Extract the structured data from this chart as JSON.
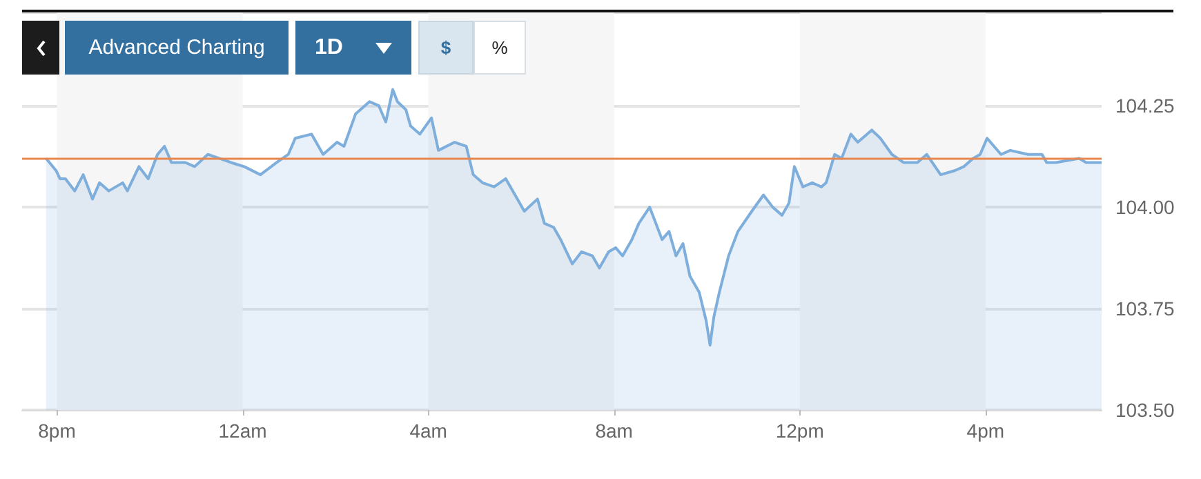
{
  "chart_data": {
    "type": "area",
    "annotations": [
      "Advanced Charting",
      "1D",
      "$",
      "%"
    ],
    "x": [
      "--01-01T19:46",
      "--01-01T19:59",
      "--01-01T20:04",
      "--01-01T20:11",
      "--01-01T20:23",
      "--01-01T20:34",
      "--01-01T20:46",
      "--01-01T20:55",
      "--01-01T21:07",
      "--01-01T21:25",
      "--01-01T21:31",
      "--01-01T21:46",
      "--01-01T21:58",
      "--01-01T22:10",
      "--01-01T22:19",
      "--01-01T22:28",
      "--01-01T22:46",
      "--01-01T22:58",
      "--01-01T23:15",
      "--01-01T23:45",
      "--01-02T00:02",
      "--01-02T00:23",
      "--01-02T00:44",
      "--01-02T00:59",
      "--01-02T01:08",
      "--01-02T01:29",
      "--01-02T01:44",
      "--01-02T02:02",
      "--01-02T02:11",
      "--01-02T02:26",
      "--01-02T02:44",
      "--01-02T02:56",
      "--01-02T03:05",
      "--01-02T03:14",
      "--01-02T03:20",
      "--01-02T03:31",
      "--01-02T03:37",
      "--01-02T03:49",
      "--01-02T04:04",
      "--01-02T04:13",
      "--01-02T04:34",
      "--01-02T04:49",
      "--01-02T04:58",
      "--01-02T05:10",
      "--01-02T05:25",
      "--01-02T05:40",
      "--01-02T05:49",
      "--01-02T06:04",
      "--01-02T06:21",
      "--01-02T06:30",
      "--01-02T06:42",
      "--01-02T06:51",
      "--01-02T07:06",
      "--01-02T07:18",
      "--01-02T07:32",
      "--01-02T07:41",
      "--01-02T07:53",
      "--01-02T08:02",
      "--01-02T08:11",
      "--01-02T08:23",
      "--01-02T08:32",
      "--01-02T08:46",
      "--01-02T09:02",
      "--01-02T09:11",
      "--01-02T09:20",
      "--01-02T09:29",
      "--01-02T09:38",
      "--01-02T09:50",
      "--01-02T09:59",
      "--01-02T10:04",
      "--01-02T10:09",
      "--01-02T10:16",
      "--01-02T10:28",
      "--01-02T10:40",
      "--01-02T10:58",
      "--01-02T11:13",
      "--01-02T11:25",
      "--01-02T11:37",
      "--01-02T11:46",
      "--01-02T11:53",
      "--01-02T12:04",
      "--01-02T12:16",
      "--01-02T12:28",
      "--01-02T12:34",
      "--01-02T12:45",
      "--01-02T12:54",
      "--01-02T13:06",
      "--01-02T13:15",
      "--01-02T13:33",
      "--01-02T13:44",
      "--01-02T13:59",
      "--01-02T14:14",
      "--01-02T14:32",
      "--01-02T14:44",
      "--01-02T15:02",
      "--01-02T15:20",
      "--01-02T15:32",
      "--01-02T15:44",
      "--01-02T15:53",
      "--01-02T16:02",
      "--01-02T16:20",
      "--01-02T16:32",
      "--01-02T16:55",
      "--01-02T17:13",
      "--01-02T17:19",
      "--01-02T17:31",
      "--01-02T18:01",
      "--01-02T18:10",
      "--01-02T18:30"
    ],
    "series": [
      {
        "color": "#7eaedb",
        "values": [
          104.12,
          104.09,
          104.07,
          104.07,
          104.04,
          104.08,
          104.02,
          104.06,
          104.04,
          104.06,
          104.04,
          104.1,
          104.07,
          104.13,
          104.15,
          104.11,
          104.11,
          104.1,
          104.13,
          104.11,
          104.1,
          104.08,
          104.11,
          104.13,
          104.17,
          104.18,
          104.13,
          104.16,
          104.15,
          104.23,
          104.26,
          104.25,
          104.21,
          104.29,
          104.26,
          104.24,
          104.2,
          104.18,
          104.22,
          104.14,
          104.16,
          104.15,
          104.08,
          104.06,
          104.05,
          104.07,
          104.04,
          103.99,
          104.02,
          103.96,
          103.95,
          103.92,
          103.86,
          103.89,
          103.88,
          103.85,
          103.89,
          103.9,
          103.88,
          103.92,
          103.96,
          104.0,
          103.92,
          103.94,
          103.88,
          103.91,
          103.83,
          103.79,
          103.72,
          103.66,
          103.73,
          103.79,
          103.88,
          103.94,
          103.99,
          104.03,
          104.0,
          103.98,
          104.01,
          104.1,
          104.05,
          104.06,
          104.05,
          104.06,
          104.13,
          104.12,
          104.18,
          104.16,
          104.19,
          104.17,
          104.13,
          104.11,
          104.11,
          104.13,
          104.08,
          104.09,
          104.1,
          104.12,
          104.13,
          104.17,
          104.13,
          104.14,
          104.13,
          104.13,
          104.11,
          104.11,
          104.12,
          104.11,
          104.11
        ]
      }
    ],
    "xlim": [
      "--01-01T19:15",
      "--01-02T18:30"
    ],
    "xticks": [
      {
        "value": "--01-01T20:00",
        "label": "8pm"
      },
      {
        "value": "--01-02T00:00",
        "label": "12am"
      },
      {
        "value": "--01-02T04:00",
        "label": "4am"
      },
      {
        "value": "--01-02T08:00",
        "label": "8am"
      },
      {
        "value": "--01-02T12:00",
        "label": "12pm"
      },
      {
        "value": "--01-02T16:00",
        "label": "4pm"
      }
    ],
    "ylim": [
      103.5,
      104.48
    ],
    "yticks": [
      {
        "value": 103.5,
        "label": "103.50"
      },
      103.75,
      {
        "value": 104,
        "label": "104.00"
      },
      104.25
    ],
    "grid": "y",
    "ref_lines": [
      {
        "axis": "y",
        "value": 104.12,
        "color": "#e8874f"
      }
    ],
    "bands": [
      {
        "axis": "x",
        "from": "--01-01T20:00",
        "to": "--01-02T00:00",
        "color": "#f6f6f6"
      },
      {
        "axis": "x",
        "from": "--01-02T04:00",
        "to": "--01-02T08:00",
        "color": "#f6f6f6"
      },
      {
        "axis": "x",
        "from": "--01-02T12:00",
        "to": "--01-02T16:00",
        "color": "#f6f6f6"
      }
    ]
  }
}
